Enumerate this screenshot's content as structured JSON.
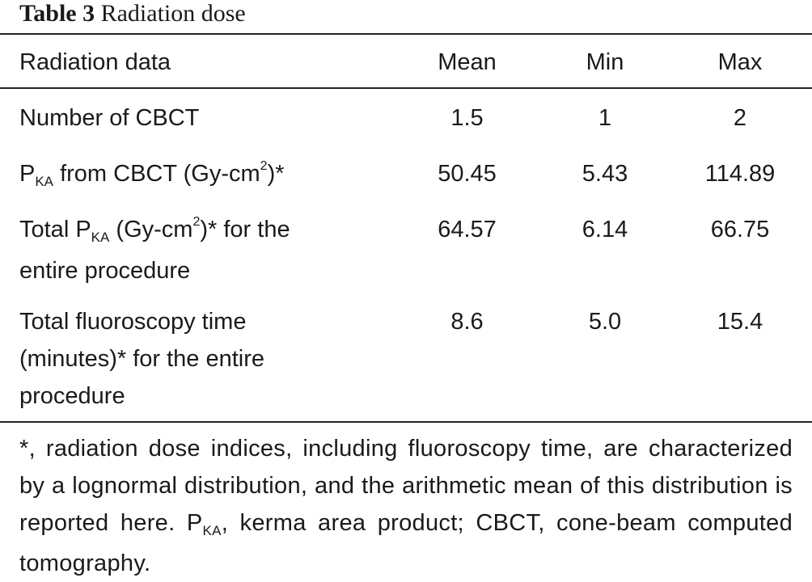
{
  "table": {
    "label": "Table 3",
    "title": "Radiation dose",
    "columns": [
      "Radiation data",
      "Mean",
      "Min",
      "Max"
    ],
    "rows": [
      {
        "label": "Number of CBCT",
        "mean": "1.5",
        "min": "1",
        "max": "2"
      },
      {
        "label_main": "P",
        "label_sub": "KA",
        "label_mid": " from CBCT (Gy-cm",
        "label_sup": "2",
        "label_end": ")*",
        "mean": "50.45",
        "min": "5.43",
        "max": "114.89"
      },
      {
        "label_main": "Total P",
        "label_sub": "KA",
        "label_mid": " (Gy-cm",
        "label_sup": "2",
        "label_end": ")* for the",
        "label_line2": "entire procedure",
        "mean": "64.57",
        "min": "6.14",
        "max": "66.75"
      },
      {
        "label_line1": "Total fluoroscopy time",
        "label_line2": "(minutes)* for the entire",
        "label_line3": "procedure",
        "mean": "8.6",
        "min": "5.0",
        "max": "15.4"
      }
    ],
    "footnote": {
      "part1": "*, radiation dose indices, including fluoroscopy time, are characterized by a lognormal distribution, and the arithmetic mean of this distribution is reported here. P",
      "sub": "KA",
      "part2": ", kerma area product; CBCT, cone-beam computed tomography."
    }
  }
}
